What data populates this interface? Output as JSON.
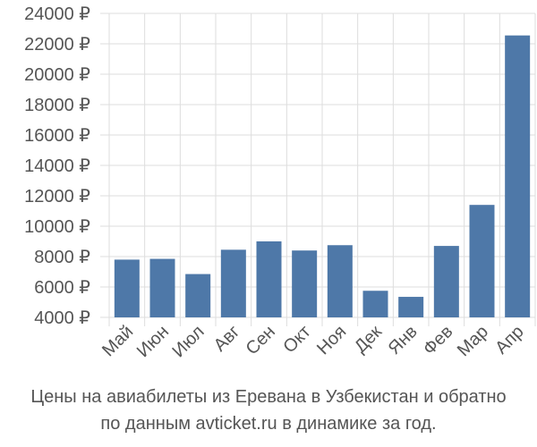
{
  "chart_data": {
    "type": "bar",
    "categories": [
      "Май",
      "Июн",
      "Июл",
      "Авг",
      "Сен",
      "Окт",
      "Ноя",
      "Дек",
      "Янв",
      "Фев",
      "Мар",
      "Апр"
    ],
    "values": [
      7800,
      7850,
      6850,
      8450,
      9000,
      8400,
      8750,
      5750,
      5350,
      8700,
      11400,
      22550
    ],
    "ylim": [
      4000,
      24000
    ],
    "yticks": [
      4000,
      6000,
      8000,
      10000,
      12000,
      14000,
      16000,
      18000,
      20000,
      22000,
      24000
    ],
    "ytick_labels": [
      "4000 ₽",
      "6000 ₽",
      "8000 ₽",
      "10000 ₽",
      "12000 ₽",
      "14000 ₽",
      "16000 ₽",
      "18000 ₽",
      "20000 ₽",
      "22000 ₽",
      "24000 ₽"
    ],
    "grid": true,
    "bar_color": "#4e78a8",
    "grid_color": "#dddddd"
  },
  "caption": {
    "line1": "Цены на авиабилеты из Еревана в Узбекистан и обратно",
    "line2": "по данным avticket.ru в динамике за год."
  }
}
